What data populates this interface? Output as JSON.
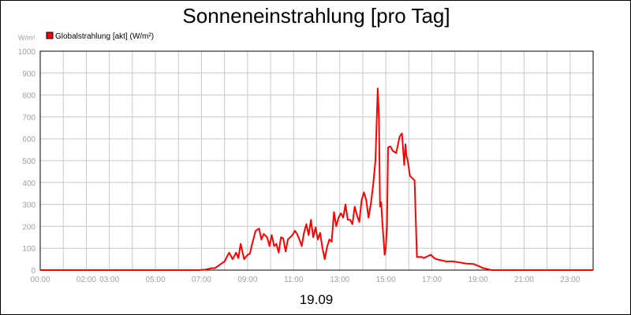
{
  "chart_data": {
    "type": "line",
    "title": "Sonneneinstrahlung [pro Tag]",
    "unit_label": "W/m²",
    "date_label": "19.09",
    "ylim": [
      0,
      1000
    ],
    "y_ticks": [
      "0",
      "100",
      "200",
      "300",
      "400",
      "500",
      "600",
      "700",
      "800",
      "900",
      "1000"
    ],
    "xlim": [
      0,
      24
    ],
    "x_ticks": [
      {
        "h": 0,
        "label": "00:00"
      },
      {
        "h": 2,
        "label": "02:00"
      },
      {
        "h": 3,
        "label": "03:00"
      },
      {
        "h": 5,
        "label": "05:00"
      },
      {
        "h": 7,
        "label": "07:00"
      },
      {
        "h": 9,
        "label": "09:00"
      },
      {
        "h": 11,
        "label": "11:00"
      },
      {
        "h": 13,
        "label": "13:00"
      },
      {
        "h": 15,
        "label": "15:00"
      },
      {
        "h": 17,
        "label": "17:00"
      },
      {
        "h": 19,
        "label": "19:00"
      },
      {
        "h": 21,
        "label": "21:00"
      },
      {
        "h": 23,
        "label": "23:00"
      }
    ],
    "grid": true,
    "legend_position": "top-left",
    "colors": {
      "line": "#ff0000",
      "grid": "#c8c8c8",
      "axis_text": "#a0a0a0"
    },
    "series": [
      {
        "name": "Globalstrahlung [akt] (W/m²)",
        "x": [
          0,
          6.9,
          7.2,
          7.4,
          7.6,
          7.8,
          8.0,
          8.2,
          8.35,
          8.5,
          8.6,
          8.7,
          8.85,
          9.0,
          9.1,
          9.2,
          9.35,
          9.5,
          9.6,
          9.7,
          9.85,
          9.95,
          10.05,
          10.15,
          10.25,
          10.35,
          10.45,
          10.55,
          10.65,
          10.75,
          10.85,
          10.95,
          11.05,
          11.15,
          11.25,
          11.35,
          11.45,
          11.55,
          11.65,
          11.75,
          11.85,
          11.95,
          12.05,
          12.15,
          12.25,
          12.35,
          12.45,
          12.55,
          12.65,
          12.75,
          12.85,
          12.95,
          13.05,
          13.15,
          13.25,
          13.35,
          13.45,
          13.55,
          13.65,
          13.75,
          13.85,
          13.95,
          14.05,
          14.15,
          14.25,
          14.35,
          14.45,
          14.55,
          14.65,
          14.7,
          14.75,
          14.8,
          14.85,
          14.95,
          15.0,
          15.05,
          15.1,
          15.2,
          15.3,
          15.45,
          15.6,
          15.7,
          15.8,
          15.85,
          15.9,
          15.95,
          16.05,
          16.15,
          16.25,
          16.35,
          16.55,
          16.65,
          16.85,
          16.95,
          17.1,
          17.2,
          17.4,
          17.6,
          17.9,
          18.2,
          18.5,
          18.8,
          19.0,
          19.2,
          19.4,
          19.6,
          19.9,
          24
        ],
        "values": [
          0,
          0,
          3,
          8,
          10,
          25,
          40,
          80,
          50,
          80,
          55,
          120,
          50,
          70,
          75,
          120,
          180,
          190,
          140,
          165,
          150,
          110,
          160,
          110,
          120,
          80,
          150,
          145,
          85,
          140,
          150,
          160,
          180,
          165,
          140,
          110,
          170,
          210,
          160,
          230,
          150,
          195,
          140,
          170,
          100,
          50,
          105,
          140,
          130,
          265,
          200,
          240,
          260,
          240,
          300,
          230,
          230,
          210,
          290,
          250,
          220,
          320,
          355,
          320,
          240,
          300,
          390,
          500,
          830,
          700,
          290,
          310,
          220,
          70,
          100,
          200,
          560,
          565,
          545,
          535,
          610,
          625,
          480,
          575,
          520,
          500,
          430,
          420,
          410,
          60,
          60,
          55,
          65,
          70,
          55,
          50,
          45,
          40,
          40,
          35,
          30,
          28,
          20,
          10,
          5,
          0,
          0,
          0
        ]
      }
    ]
  }
}
